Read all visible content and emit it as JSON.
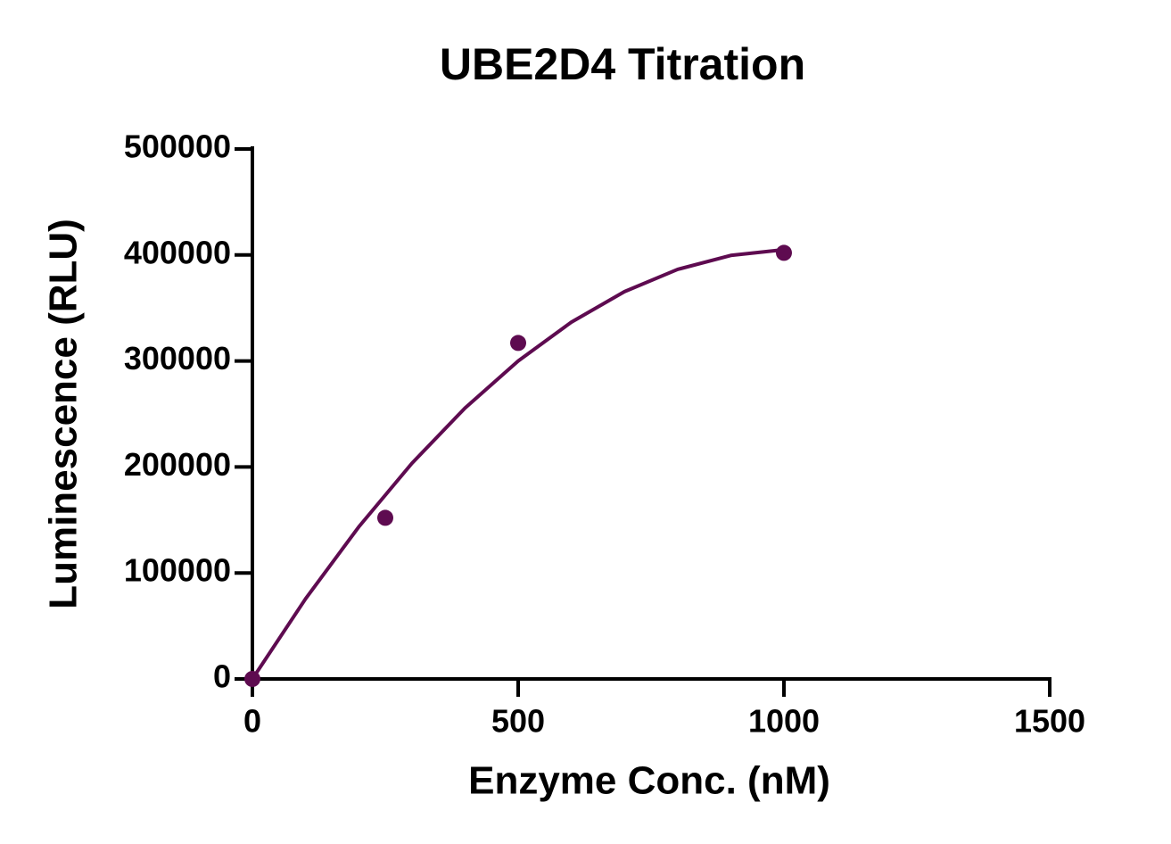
{
  "chart_data": {
    "type": "scatter",
    "title": "UBE2D4 Titration",
    "x_label": "Enzyme Conc. (nM)",
    "y_label": "Luminescence (RLU)",
    "series": [
      {
        "type": "scatter",
        "color": "#5e0b50",
        "x": [
          0,
          250,
          500,
          1000
        ],
        "values": [
          0,
          152000,
          317000,
          402000
        ]
      },
      {
        "type": "line",
        "color": "#5e0b50",
        "x": [
          0,
          100,
          200,
          300,
          400,
          500,
          600,
          700,
          800,
          900,
          1000
        ],
        "values": [
          0,
          75600,
          143400,
          203400,
          255600,
          300000,
          336600,
          365400,
          386400,
          399600,
          405000
        ]
      }
    ],
    "xlim": [
      0,
      1500
    ],
    "xticks": [
      0,
      500,
      1000,
      1500
    ],
    "ylim": [
      0,
      500000
    ],
    "yticks": [
      0,
      100000,
      200000,
      300000,
      400000,
      500000
    ]
  }
}
